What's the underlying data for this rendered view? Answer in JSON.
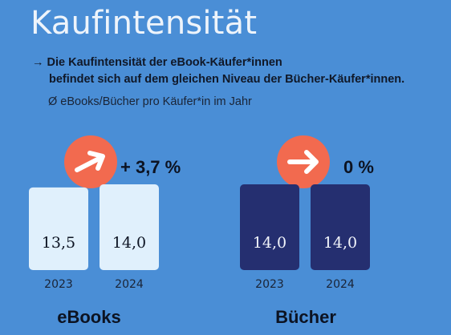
{
  "title": "Kaufintensität",
  "subtitle_line1": "→ Die Kaufintensität der eBook-Käufer*innen",
  "subtitle_line2": "befindet sich auf dem gleichen Niveau der Bücher-Käufer*innen.",
  "unit": "Ø eBooks/Bücher pro Käufer*in im Jahr",
  "colors": {
    "background": "#4a8ed6",
    "ebooks_bar": "#e0f0fc",
    "buecher_bar": "#252f70",
    "arrow_circle": "#f26a4f"
  },
  "chart_data": {
    "type": "bar",
    "categories": [
      "2023",
      "2024"
    ],
    "groups": [
      {
        "name": "eBooks",
        "values": [
          13.5,
          14.0
        ],
        "value_labels": [
          "13,5",
          "14,0"
        ],
        "change": "+ 3,7 %",
        "change_icon": "arrow-right-icon"
      },
      {
        "name": "Bücher",
        "values": [
          14.0,
          14.0
        ],
        "value_labels": [
          "14,0",
          "14,0"
        ],
        "change": "0 %",
        "change_icon": "arrow-right-icon"
      }
    ]
  }
}
